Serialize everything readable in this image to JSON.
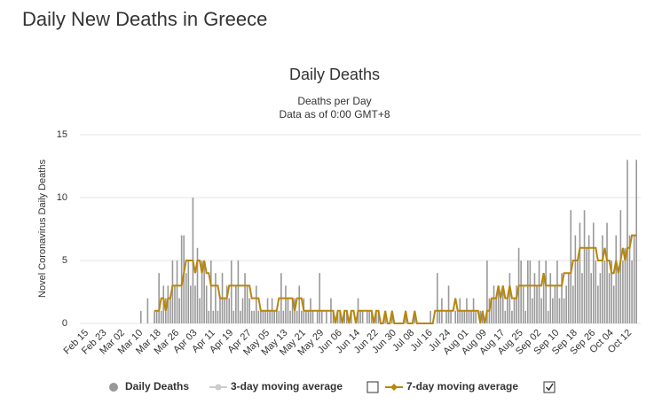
{
  "page_title": "Daily New Deaths in Greece",
  "chart_data": {
    "type": "bar_line",
    "title": "Daily Deaths",
    "subtitle": [
      "Deaths per Day",
      "Data as of 0:00 GMT+8"
    ],
    "y_label": "Novel Coronavirus Daily Deaths",
    "ylim": [
      0,
      15
    ],
    "yticks": [
      0,
      5,
      10,
      15
    ],
    "grid": true,
    "categories": [
      "Feb 15",
      null,
      null,
      null,
      null,
      null,
      null,
      null,
      "Feb 23",
      null,
      null,
      null,
      null,
      null,
      null,
      null,
      "Mar 02",
      null,
      null,
      null,
      null,
      null,
      null,
      null,
      "Mar 10",
      null,
      null,
      null,
      null,
      null,
      null,
      null,
      "Mar 18",
      null,
      null,
      null,
      null,
      null,
      null,
      null,
      "Mar 26",
      null,
      null,
      null,
      null,
      null,
      null,
      null,
      "Apr 03",
      null,
      null,
      null,
      null,
      null,
      null,
      null,
      "Apr 11",
      null,
      null,
      null,
      null,
      null,
      null,
      null,
      "Apr 19",
      null,
      null,
      null,
      null,
      null,
      null,
      null,
      "Apr 27",
      null,
      null,
      null,
      null,
      null,
      null,
      null,
      "May 05",
      null,
      null,
      null,
      null,
      null,
      null,
      null,
      "May 13",
      null,
      null,
      null,
      null,
      null,
      null,
      null,
      "May 21",
      null,
      null,
      null,
      null,
      null,
      null,
      null,
      "May 29",
      null,
      null,
      null,
      null,
      null,
      null,
      null,
      "Jun 06",
      null,
      null,
      null,
      null,
      null,
      null,
      null,
      "Jun 14",
      null,
      null,
      null,
      null,
      null,
      null,
      null,
      "Jun 22",
      null,
      null,
      null,
      null,
      null,
      null,
      null,
      "Jun 30",
      null,
      null,
      null,
      null,
      null,
      null,
      null,
      "Jul 08",
      null,
      null,
      null,
      null,
      null,
      null,
      null,
      "Jul 16",
      null,
      null,
      null,
      null,
      null,
      null,
      null,
      "Jul 24",
      null,
      null,
      null,
      null,
      null,
      null,
      null,
      "Aug 01",
      null,
      null,
      null,
      null,
      null,
      null,
      null,
      "Aug 09",
      null,
      null,
      null,
      null,
      null,
      null,
      null,
      "Aug 17",
      null,
      null,
      null,
      null,
      null,
      null,
      null,
      "Aug 25",
      null,
      null,
      null,
      null,
      null,
      null,
      null,
      "Sep 02",
      null,
      null,
      null,
      null,
      null,
      null,
      null,
      "Sep 10",
      null,
      null,
      null,
      null,
      null,
      null,
      null,
      "Sep 18",
      null,
      null,
      null,
      null,
      null,
      null,
      null,
      "Sep 26",
      null,
      null,
      null,
      null,
      null,
      null,
      null,
      "Oct 04",
      null,
      null,
      null,
      null,
      null,
      null,
      null,
      "Oct 12",
      null,
      null,
      null,
      null
    ],
    "series": [
      {
        "name": "Daily Deaths",
        "kind": "bar",
        "color": "#999999",
        "values": [
          0,
          0,
          0,
          0,
          0,
          0,
          0,
          0,
          0,
          0,
          0,
          0,
          0,
          0,
          0,
          0,
          0,
          0,
          0,
          0,
          0,
          0,
          0,
          0,
          0,
          1,
          0,
          0,
          2,
          0,
          0,
          1,
          1,
          4,
          1,
          3,
          2,
          3,
          2,
          5,
          3,
          5,
          2,
          7,
          7,
          4,
          5,
          3,
          10,
          3,
          6,
          2,
          5,
          5,
          3,
          1,
          5,
          1,
          4,
          1,
          2,
          4,
          2,
          3,
          2,
          5,
          1,
          3,
          5,
          1,
          2,
          4,
          3,
          2,
          1,
          1,
          3,
          1,
          1,
          1,
          1,
          2,
          1,
          2,
          1,
          1,
          1,
          4,
          1,
          3,
          2,
          1,
          2,
          2,
          1,
          3,
          1,
          2,
          1,
          1,
          2,
          1,
          0,
          1,
          4,
          1,
          0,
          1,
          0,
          2,
          1,
          0,
          1,
          1,
          0,
          1,
          1,
          0,
          1,
          0,
          0,
          2,
          1,
          1,
          0,
          1,
          1,
          1,
          0,
          1,
          1,
          0,
          0,
          1,
          0,
          0,
          1,
          0,
          0,
          0,
          0,
          0,
          1,
          0,
          0,
          0,
          1,
          0,
          0,
          0,
          0,
          0,
          0,
          1,
          0,
          0,
          4,
          1,
          2,
          0,
          1,
          3,
          1,
          0,
          1,
          1,
          2,
          1,
          1,
          2,
          1,
          1,
          2,
          1,
          0,
          1,
          1,
          0,
          5,
          2,
          2,
          3,
          2,
          3,
          2,
          3,
          1,
          2,
          4,
          1,
          2,
          3,
          6,
          5,
          3,
          1,
          5,
          5,
          2,
          4,
          3,
          5,
          2,
          4,
          5,
          1,
          4,
          2,
          3,
          5,
          2,
          4,
          2,
          3,
          4,
          9,
          3,
          7,
          5,
          8,
          4,
          9,
          6,
          7,
          4,
          8,
          5,
          3,
          4,
          7,
          5,
          8,
          4,
          5,
          3,
          7,
          4,
          9,
          5,
          6,
          13,
          7,
          5,
          7,
          13
        ]
      },
      {
        "name": "7-day moving average",
        "kind": "line",
        "color": "#b8860b",
        "values": [
          null,
          null,
          null,
          null,
          null,
          null,
          null,
          null,
          null,
          null,
          null,
          null,
          null,
          null,
          null,
          null,
          null,
          null,
          null,
          null,
          null,
          null,
          null,
          null,
          null,
          null,
          null,
          null,
          null,
          null,
          null,
          1,
          1,
          1,
          2,
          2,
          1,
          2,
          2,
          3,
          3,
          3,
          3,
          3,
          4,
          5,
          5,
          5,
          5,
          4,
          5,
          5,
          4,
          5,
          4,
          4,
          3,
          3,
          3,
          3,
          2,
          2,
          2,
          2,
          3,
          3,
          3,
          3,
          3,
          3,
          3,
          3,
          3,
          3,
          2,
          2,
          2,
          2,
          1,
          1,
          1,
          1,
          1,
          1,
          1,
          1,
          2,
          2,
          2,
          2,
          2,
          2,
          2,
          1,
          2,
          2,
          2,
          1,
          1,
          1,
          1,
          1,
          1,
          1,
          1,
          1,
          1,
          1,
          1,
          1,
          1,
          0,
          1,
          1,
          0,
          1,
          1,
          0,
          1,
          1,
          0,
          1,
          1,
          1,
          1,
          1,
          1,
          1,
          0,
          1,
          1,
          0,
          0,
          1,
          0,
          0,
          1,
          0,
          0,
          0,
          0,
          0,
          1,
          0,
          0,
          0,
          1,
          0,
          0,
          0,
          0,
          0,
          0,
          0,
          0,
          1,
          1,
          1,
          1,
          1,
          1,
          1,
          1,
          1,
          2,
          1,
          1,
          1,
          1,
          1,
          1,
          1,
          1,
          1,
          1,
          0,
          1,
          0,
          1,
          1,
          2,
          2,
          2,
          3,
          2,
          3,
          2,
          2,
          3,
          2,
          2,
          2,
          3,
          3,
          3,
          3,
          3,
          3,
          3,
          3,
          3,
          3,
          3,
          4,
          3,
          3,
          3,
          3,
          3,
          3,
          3,
          3,
          4,
          4,
          4,
          4,
          5,
          5,
          5,
          6,
          6,
          6,
          6,
          6,
          6,
          6,
          6,
          5,
          5,
          5,
          6,
          5,
          5,
          4,
          4,
          5,
          4,
          5,
          6,
          5,
          6,
          6,
          7,
          7,
          7
        ]
      }
    ],
    "inactive_series": {
      "name": "3-day moving average",
      "color": "#cccccc"
    }
  }
}
